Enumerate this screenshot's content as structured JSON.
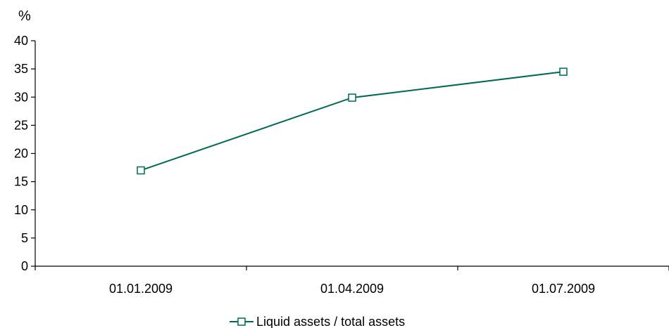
{
  "chart_data": {
    "type": "line",
    "unit_label": "%",
    "categories": [
      "01.01.2009",
      "01.04.2009",
      "01.07.2009"
    ],
    "series": [
      {
        "name": "Liquid assets / total assets",
        "values": [
          17.0,
          29.9,
          34.5
        ],
        "color": "#006b54",
        "marker": "square-hollow"
      }
    ],
    "ylim": [
      0,
      40
    ],
    "yticks": [
      0,
      5,
      10,
      15,
      20,
      25,
      30,
      35,
      40
    ],
    "grid": false,
    "legend_position": "bottom-center"
  }
}
